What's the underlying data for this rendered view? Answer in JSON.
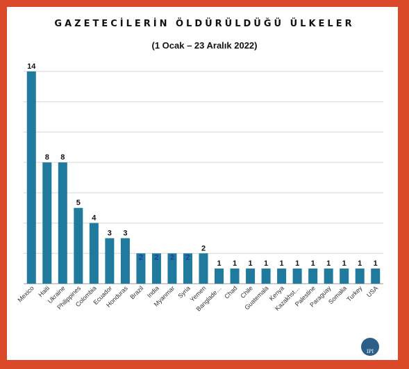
{
  "chart_data": {
    "type": "bar",
    "title": "GAZETECİLERİN ÖLDÜRÜLDÜĞÜ ÜLKELER",
    "subtitle": "(1 Ocak – 23 Aralık 2022)",
    "categories": [
      "Mexico",
      "Haiti",
      "Ukraine",
      "Philippines",
      "Colombia",
      "Ecuador",
      "Honduras",
      "Brazil",
      "India",
      "Myanmar",
      "Syria",
      "Yemen",
      "Banglade…",
      "Chad",
      "Chile",
      "Guatemala",
      "Kenya",
      "Kazakhst…",
      "Palestine",
      "Paraguay",
      "Somalia",
      "Turkey",
      "USA"
    ],
    "values": [
      14,
      8,
      8,
      5,
      4,
      3,
      3,
      2,
      2,
      2,
      2,
      2,
      1,
      1,
      1,
      1,
      1,
      1,
      1,
      1,
      1,
      1,
      1
    ],
    "ylim": [
      0,
      14
    ],
    "grid": true,
    "bar_color": "#1f7a9e",
    "label_color": "#111111",
    "inside_label_color": "#1f3e9e"
  },
  "logo_text": "IPI"
}
